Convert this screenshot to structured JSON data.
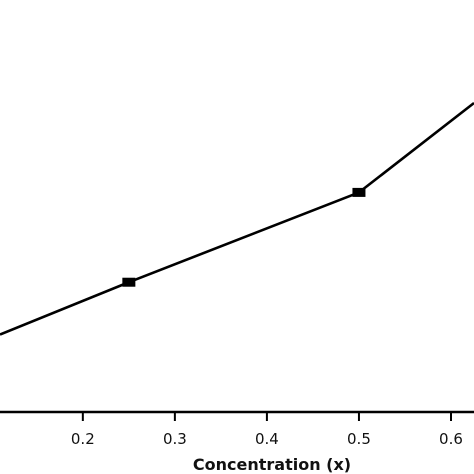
{
  "chart_data": {
    "type": "line",
    "xlabel": "Concentration (x)",
    "ylabel": "",
    "title": "",
    "xlim": [
      0.11,
      0.625
    ],
    "ylim": [
      0,
      100
    ],
    "xticks": [
      {
        "value": 0.2,
        "label": "0.2"
      },
      {
        "value": 0.3,
        "label": "0.3"
      },
      {
        "value": 0.4,
        "label": "0.4"
      },
      {
        "value": 0.5,
        "label": "0.5"
      },
      {
        "value": 0.6,
        "label": "0.6"
      }
    ],
    "grid": false,
    "series": [
      {
        "x": [
          0.11,
          0.25,
          0.5,
          0.625
        ],
        "y": [
          18.8,
          31.5,
          53.3,
          75.0
        ],
        "markers": [
          false,
          true,
          true,
          false
        ],
        "color": "#000000"
      }
    ]
  }
}
